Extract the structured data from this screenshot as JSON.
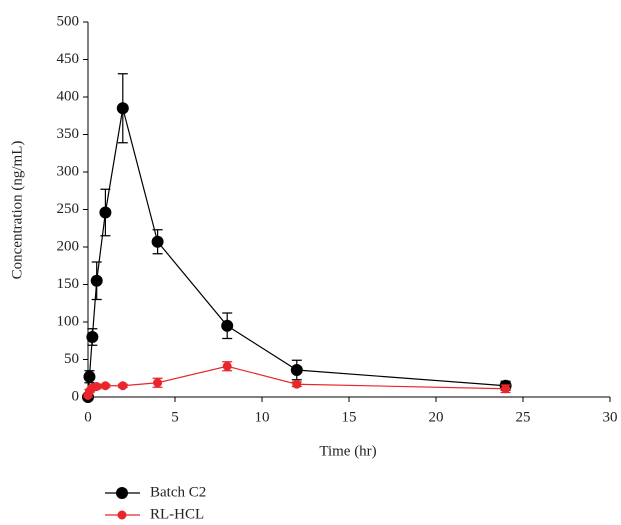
{
  "chart_data": {
    "type": "line",
    "x_label": "Time (hr)",
    "y_label": "Concentration (ng/mL)",
    "xlim": [
      0,
      30
    ],
    "xticks": [
      0,
      5,
      10,
      15,
      20,
      25,
      30
    ],
    "ylim": [
      0,
      500
    ],
    "yticks": [
      0,
      50,
      100,
      150,
      200,
      250,
      300,
      350,
      400,
      450,
      500
    ],
    "legend": "bottom-left",
    "series": [
      {
        "name": "Batch C2",
        "color": "#000000",
        "x": [
          0,
          0.083,
          0.25,
          0.5,
          1,
          2,
          4,
          8,
          12,
          24
        ],
        "values": [
          0,
          27,
          80,
          155,
          246,
          385,
          207,
          95,
          36,
          15
        ],
        "errors": [
          0,
          8,
          11,
          25,
          31,
          46,
          16,
          17,
          13,
          6
        ]
      },
      {
        "name": "RL-HCL",
        "color": "#e8262b",
        "x": [
          0,
          0.083,
          0.25,
          0.5,
          1,
          2,
          4,
          8,
          12,
          24
        ],
        "values": [
          2,
          8,
          12,
          14,
          15,
          15,
          19,
          41,
          17,
          11
        ],
        "errors": [
          2,
          2,
          3,
          3,
          2,
          2,
          6,
          6,
          3,
          5
        ]
      }
    ]
  }
}
